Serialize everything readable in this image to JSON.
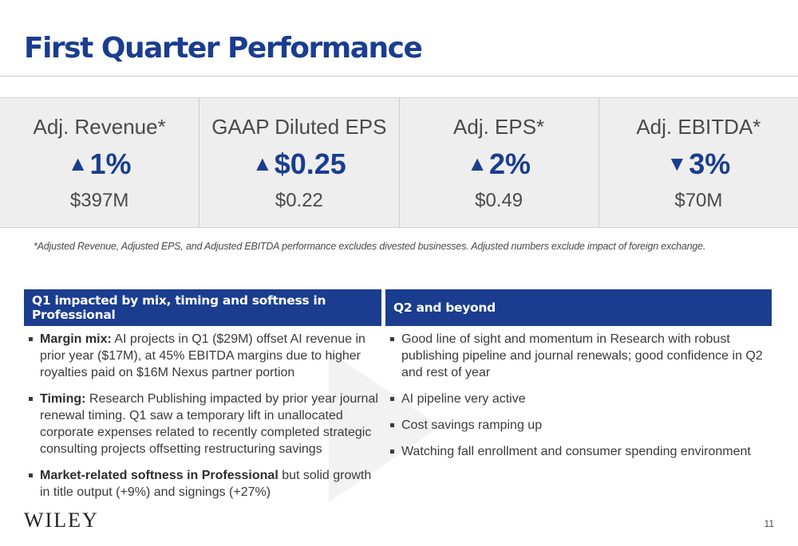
{
  "title": "First Quarter Performance",
  "metrics": [
    {
      "label": "Adj. Revenue*",
      "direction": "up",
      "arrow": "▲",
      "change": "1%",
      "value": "$397M"
    },
    {
      "label": "GAAP Diluted EPS",
      "direction": "up",
      "arrow": "▲",
      "change": "$0.25",
      "value": "$0.22"
    },
    {
      "label": "Adj. EPS*",
      "direction": "up",
      "arrow": "▲",
      "change": "2%",
      "value": "$0.49"
    },
    {
      "label": "Adj. EBITDA*",
      "direction": "down",
      "arrow": "▼",
      "change": "3%",
      "value": "$70M"
    }
  ],
  "footnote": "*Adjusted Revenue, Adjusted EPS, and Adjusted EBITDA performance excludes divested businesses.  Adjusted numbers exclude impact of foreign exchange.",
  "left_panel": {
    "heading": "Q1 impacted by mix, timing and softness in Professional",
    "bullets": [
      {
        "bold": "Margin mix:",
        "text": "  AI projects in Q1 ($29M) offset AI revenue in prior year ($17M), at 45% EBITDA margins due to higher royalties paid on $16M Nexus partner portion"
      },
      {
        "bold": "Timing:",
        "text": "  Research Publishing impacted by prior year journal renewal timing.  Q1 saw a temporary lift in unallocated corporate expenses related to recently completed strategic consulting projects offsetting restructuring savings"
      },
      {
        "bold": "Market-related softness in Professional",
        "text": " but solid growth in title output (+9%) and signings (+27%)"
      }
    ]
  },
  "right_panel": {
    "heading": "Q2 and beyond",
    "bullets": [
      {
        "text": "Good line of sight and momentum in Research with robust publishing pipeline and journal renewals; good confidence in Q2 and rest of year"
      },
      {
        "text": "AI pipeline very active"
      },
      {
        "text": "Cost savings ramping up"
      },
      {
        "text": "Watching fall enrollment and consumer spending environment"
      }
    ]
  },
  "logo": "WILEY",
  "page_number": "11",
  "colors": {
    "brand_blue": "#1a3d8f",
    "band_gray": "#eeeeee",
    "text": "#3a3a3a"
  }
}
